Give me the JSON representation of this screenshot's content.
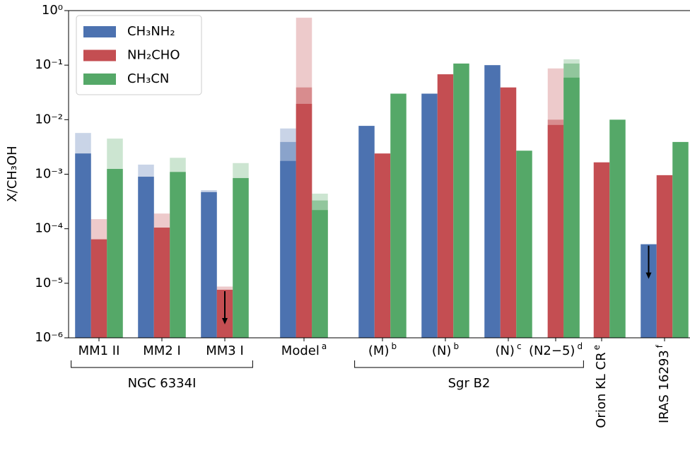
{
  "chart_data": {
    "type": "bar",
    "y_label": "X/CH₃OH",
    "log_scale": true,
    "ylim": [
      1e-06,
      1
    ],
    "yticks": [
      {
        "value": 1e-06,
        "label": "10⁻⁶"
      },
      {
        "value": 1e-05,
        "label": "10⁻⁵"
      },
      {
        "value": 0.0001,
        "label": "10⁻⁴"
      },
      {
        "value": 0.001,
        "label": "10⁻³"
      },
      {
        "value": 0.01,
        "label": "10⁻²"
      },
      {
        "value": 0.1,
        "label": "10⁻¹"
      },
      {
        "value": 1,
        "label": "10⁰"
      }
    ],
    "categories": [
      "MM1 II",
      "MM2 I",
      "MM3 I",
      "Model",
      "(M)",
      "(N)",
      "(N)",
      "(N2−5)",
      "Orion KL CR",
      "IRAS 16293"
    ],
    "superscripts": [
      null,
      null,
      null,
      "a",
      "b",
      "b",
      "c",
      "d",
      "e",
      "f"
    ],
    "groups": [
      {
        "label": "NGC 6334I",
        "from": 0,
        "to": 2
      },
      {
        "label": "Sgr B2",
        "from": 4,
        "to": 7
      }
    ],
    "legend": "upper left",
    "series": [
      {
        "name": "CH₃NH₂",
        "color": "#4c72b0",
        "values": [
          0.0024,
          0.0009,
          0.00047,
          0.00175,
          0.0077,
          0.03,
          0.1,
          null,
          null,
          5.2e-05
        ],
        "mid_values": [
          null,
          null,
          null,
          0.0039,
          null,
          null,
          null,
          null,
          null,
          null
        ],
        "upper_values": [
          0.0057,
          0.0015,
          0.00051,
          0.0069,
          null,
          null,
          null,
          null,
          null,
          null
        ],
        "upper_limit": [
          false,
          false,
          false,
          false,
          false,
          false,
          false,
          false,
          false,
          true
        ]
      },
      {
        "name": "NH₂CHO",
        "color": "#c44e52",
        "values": [
          6.4e-05,
          0.000105,
          7.6e-06,
          0.0195,
          0.0024,
          0.068,
          0.039,
          0.008,
          0.00165,
          0.00096
        ],
        "mid_values": [
          null,
          null,
          null,
          0.039,
          null,
          null,
          null,
          0.01,
          null,
          null
        ],
        "upper_values": [
          0.00015,
          0.00019,
          8.7e-06,
          0.74,
          null,
          null,
          null,
          0.087,
          null,
          null
        ],
        "upper_limit": [
          false,
          false,
          true,
          false,
          false,
          false,
          false,
          false,
          false,
          false
        ]
      },
      {
        "name": "CH₃CN",
        "color": "#55a868",
        "values": [
          0.00125,
          0.0011,
          0.00085,
          0.00022,
          0.03,
          0.107,
          0.0027,
          0.059,
          0.01,
          0.0039
        ],
        "mid_values": [
          null,
          null,
          null,
          0.00033,
          null,
          null,
          null,
          0.107,
          null,
          null
        ],
        "upper_values": [
          0.0045,
          0.002,
          0.0016,
          0.00044,
          null,
          null,
          null,
          0.128,
          null,
          null
        ],
        "upper_limit": [
          false,
          false,
          false,
          false,
          false,
          false,
          false,
          false,
          false,
          false
        ]
      }
    ]
  }
}
